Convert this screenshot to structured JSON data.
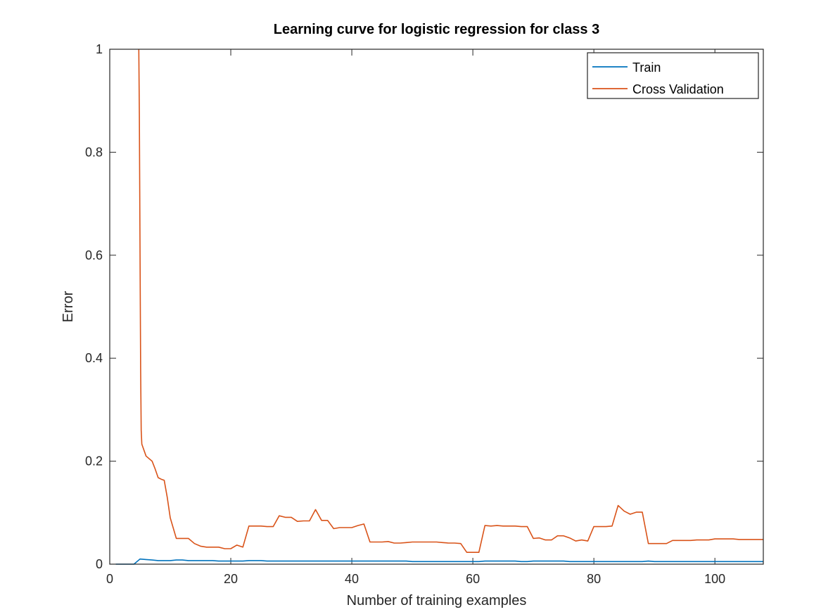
{
  "chart_data": {
    "type": "line",
    "title": "Learning curve for logistic regression for class 3",
    "xlabel": "Number of training examples",
    "ylabel": "Error",
    "xlim": [
      0,
      108
    ],
    "ylim": [
      0,
      1
    ],
    "xticks": [
      0,
      20,
      40,
      60,
      80,
      100
    ],
    "yticks": [
      0,
      0.2,
      0.4,
      0.6,
      0.8,
      1
    ],
    "xtick_labels": [
      "0",
      "20",
      "40",
      "60",
      "80",
      "100"
    ],
    "ytick_labels": [
      "0",
      "0.2",
      "0.4",
      "0.6",
      "0.8",
      "1"
    ],
    "grid": false,
    "legend": {
      "placement": "top-right",
      "entries": [
        "Train",
        "Cross Validation"
      ]
    },
    "series": [
      {
        "name": "Train",
        "color": "#0072BD",
        "x": [
          1,
          2,
          3,
          4,
          5,
          6,
          7,
          8,
          9,
          10,
          11,
          12,
          13,
          14,
          15,
          16,
          17,
          18,
          19,
          20,
          21,
          22,
          23,
          24,
          25,
          26,
          27,
          28,
          29,
          30,
          31,
          32,
          33,
          34,
          35,
          36,
          37,
          38,
          39,
          40,
          41,
          42,
          43,
          44,
          45,
          46,
          47,
          48,
          49,
          50,
          51,
          52,
          53,
          54,
          55,
          56,
          57,
          58,
          59,
          60,
          61,
          62,
          63,
          64,
          65,
          66,
          67,
          68,
          69,
          70,
          71,
          72,
          73,
          74,
          75,
          76,
          77,
          78,
          79,
          80,
          81,
          82,
          83,
          84,
          85,
          86,
          87,
          88,
          89,
          90,
          91,
          92,
          93,
          94,
          95,
          96,
          97,
          98,
          99,
          100,
          101,
          102,
          103,
          104,
          105,
          106,
          107,
          108
        ],
        "y": [
          0,
          0,
          0,
          0,
          0.01,
          0.009,
          0.008,
          0.007,
          0.007,
          0.007,
          0.008,
          0.008,
          0.007,
          0.007,
          0.007,
          0.007,
          0.007,
          0.006,
          0.006,
          0.006,
          0.006,
          0.006,
          0.007,
          0.007,
          0.007,
          0.006,
          0.006,
          0.006,
          0.006,
          0.006,
          0.006,
          0.006,
          0.006,
          0.006,
          0.006,
          0.006,
          0.006,
          0.006,
          0.006,
          0.006,
          0.006,
          0.006,
          0.006,
          0.006,
          0.006,
          0.006,
          0.006,
          0.006,
          0.006,
          0.005,
          0.005,
          0.005,
          0.005,
          0.005,
          0.005,
          0.005,
          0.005,
          0.005,
          0.005,
          0.005,
          0.005,
          0.006,
          0.006,
          0.006,
          0.006,
          0.006,
          0.006,
          0.005,
          0.005,
          0.006,
          0.006,
          0.006,
          0.006,
          0.006,
          0.006,
          0.005,
          0.005,
          0.005,
          0.005,
          0.005,
          0.005,
          0.005,
          0.005,
          0.005,
          0.005,
          0.005,
          0.005,
          0.005,
          0.006,
          0.005,
          0.005,
          0.005,
          0.005,
          0.005,
          0.005,
          0.005,
          0.005,
          0.005,
          0.005,
          0.005,
          0.005,
          0.005,
          0.005,
          0.005,
          0.005,
          0.005,
          0.005,
          0.005
        ]
      },
      {
        "name": "Cross Validation",
        "color": "#D95319",
        "x": [
          4.8,
          4.9,
          5,
          5.1,
          5.2,
          5.3,
          6,
          7,
          7.5,
          8,
          8.5,
          9,
          9.5,
          10,
          11,
          12,
          13,
          14,
          15,
          16,
          17,
          18,
          19,
          20,
          21,
          22,
          23,
          24,
          25,
          26,
          27,
          28,
          29,
          30,
          31,
          32,
          33,
          34,
          35,
          36,
          37,
          38,
          39,
          40,
          41,
          42,
          43,
          44,
          45,
          46,
          47,
          48,
          49,
          50,
          51,
          52,
          53,
          54,
          55,
          56,
          57,
          58,
          59,
          60,
          61,
          62,
          63,
          64,
          65,
          66,
          67,
          68,
          69,
          70,
          71,
          72,
          73,
          74,
          75,
          76,
          77,
          78,
          79,
          80,
          81,
          82,
          83,
          84,
          85,
          86,
          87,
          88,
          89,
          90,
          91,
          92,
          93,
          94,
          95,
          96,
          97,
          98,
          99,
          100,
          101,
          102,
          103,
          104,
          105,
          106,
          107,
          108
        ],
        "y": [
          1,
          0.87,
          0.62,
          0.38,
          0.26,
          0.233,
          0.21,
          0.2,
          0.185,
          0.168,
          0.165,
          0.163,
          0.13,
          0.09,
          0.05,
          0.05,
          0.05,
          0.04,
          0.035,
          0.033,
          0.033,
          0.033,
          0.03,
          0.03,
          0.037,
          0.033,
          0.074,
          0.074,
          0.074,
          0.073,
          0.073,
          0.094,
          0.091,
          0.091,
          0.083,
          0.084,
          0.084,
          0.106,
          0.085,
          0.085,
          0.069,
          0.071,
          0.071,
          0.071,
          0.075,
          0.078,
          0.043,
          0.043,
          0.043,
          0.044,
          0.041,
          0.041,
          0.042,
          0.043,
          0.043,
          0.043,
          0.043,
          0.043,
          0.042,
          0.041,
          0.041,
          0.04,
          0.023,
          0.023,
          0.023,
          0.075,
          0.074,
          0.075,
          0.074,
          0.074,
          0.074,
          0.073,
          0.073,
          0.05,
          0.051,
          0.047,
          0.047,
          0.055,
          0.055,
          0.051,
          0.045,
          0.047,
          0.045,
          0.073,
          0.073,
          0.073,
          0.074,
          0.114,
          0.103,
          0.097,
          0.101,
          0.101,
          0.04,
          0.04,
          0.04,
          0.04,
          0.046,
          0.046,
          0.046,
          0.046,
          0.047,
          0.047,
          0.047,
          0.049,
          0.049,
          0.049,
          0.049,
          0.048,
          0.048,
          0.048,
          0.048,
          0.048
        ]
      }
    ]
  }
}
